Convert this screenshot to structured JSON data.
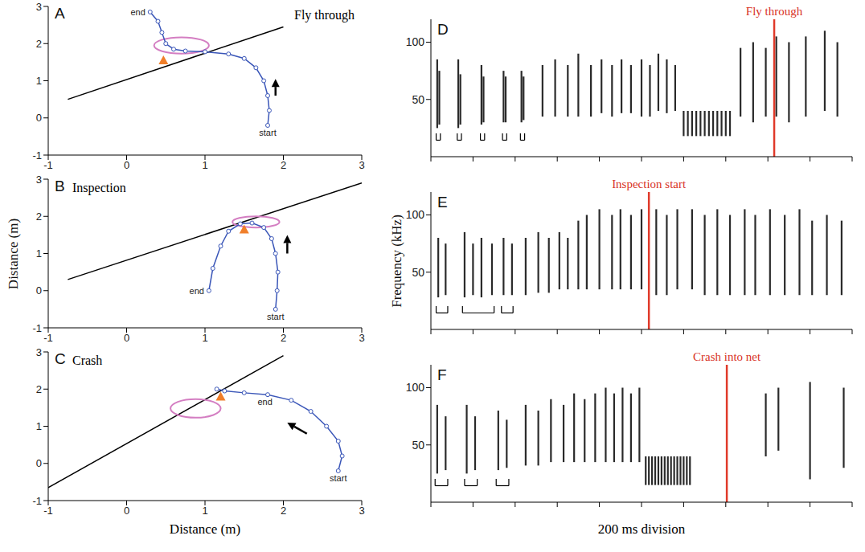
{
  "chart_data": [
    {
      "type": "line",
      "panel": "A",
      "title": "Fly through",
      "xlim": [
        -1,
        3
      ],
      "ylim": [
        -1,
        3
      ],
      "xticks": [
        -1,
        0,
        1,
        2,
        3
      ],
      "yticks": [
        -1,
        0,
        1,
        2,
        3
      ],
      "trajectory": {
        "x": [
          1.8,
          1.82,
          1.8,
          1.75,
          1.65,
          1.5,
          1.3,
          1.0,
          0.75,
          0.6,
          0.5,
          0.45,
          0.4,
          0.3
        ],
        "y": [
          -0.2,
          0.2,
          0.6,
          1.0,
          1.35,
          1.6,
          1.72,
          1.78,
          1.8,
          1.85,
          2.0,
          2.3,
          2.6,
          2.85
        ]
      },
      "point_labels": [
        "start",
        "end"
      ],
      "net_line": {
        "x": [
          -0.75,
          2.0
        ],
        "y": [
          0.5,
          2.45
        ]
      },
      "microphone": {
        "x": 0.47,
        "y": 1.55
      },
      "ellipse": {
        "x": 0.7,
        "y": 1.95,
        "rx": 0.35,
        "ry": 0.22
      },
      "arrow": {
        "x": [
          1.9,
          1.9
        ],
        "y": [
          0.6,
          1.05
        ]
      }
    },
    {
      "type": "line",
      "panel": "B",
      "title": "Inspection",
      "y_label": "Distance (m)",
      "xlim": [
        -1,
        3
      ],
      "ylim": [
        -1,
        3
      ],
      "xticks": [
        -1,
        0,
        1,
        2,
        3
      ],
      "yticks": [
        -1,
        0,
        1,
        2,
        3
      ],
      "trajectory": {
        "x": [
          1.9,
          1.92,
          1.93,
          1.9,
          1.85,
          1.75,
          1.6,
          1.45,
          1.3,
          1.2,
          1.1,
          1.05
        ],
        "y": [
          -0.5,
          0.0,
          0.5,
          1.0,
          1.4,
          1.7,
          1.82,
          1.8,
          1.6,
          1.2,
          0.6,
          0.0
        ]
      },
      "point_labels": [
        "start",
        "end"
      ],
      "net_line": {
        "x": [
          -0.75,
          3.0
        ],
        "y": [
          0.3,
          2.9
        ]
      },
      "microphone": {
        "x": 1.5,
        "y": 1.65
      },
      "ellipse": {
        "x": 1.65,
        "y": 1.85,
        "rx": 0.3,
        "ry": 0.15
      },
      "arrow": {
        "x": [
          2.05,
          2.05
        ],
        "y": [
          1.0,
          1.5
        ]
      }
    },
    {
      "type": "line",
      "panel": "C",
      "title": "Crash",
      "x_label": "Distance (m)",
      "xlim": [
        -1,
        3
      ],
      "ylim": [
        -1,
        3
      ],
      "xticks": [
        -1,
        0,
        1,
        2,
        3
      ],
      "yticks": [
        -1,
        0,
        1,
        2,
        3
      ],
      "trajectory": {
        "x": [
          2.7,
          2.75,
          2.7,
          2.55,
          2.35,
          2.1,
          1.8,
          1.5,
          1.25,
          1.15
        ],
        "y": [
          -0.2,
          0.2,
          0.6,
          1.0,
          1.4,
          1.7,
          1.85,
          1.9,
          1.95,
          2.0
        ]
      },
      "point_labels": [
        "start",
        "end"
      ],
      "net_line": {
        "x": [
          -1.0,
          2.0
        ],
        "y": [
          -0.65,
          2.9
        ]
      },
      "microphone": {
        "x": 1.2,
        "y": 1.8
      },
      "ellipse": {
        "x": 0.88,
        "y": 1.48,
        "rx": 0.32,
        "ry": 0.25
      },
      "arrow": {
        "x": [
          2.3,
          2.05
        ],
        "y": [
          0.8,
          1.1
        ]
      }
    },
    {
      "type": "spectrogram",
      "panel": "D",
      "xlim": [
        0,
        2000
      ],
      "xticks": [
        0,
        200,
        400,
        600,
        800,
        1000,
        1200,
        1400,
        1600,
        1800,
        2000
      ],
      "ylim": [
        0,
        120
      ],
      "yticks": [
        50,
        100
      ],
      "tick_labels": "y",
      "event": {
        "t": 1630,
        "label": "Fly through"
      },
      "groups": [
        [
          25,
          45
        ],
        [
          125,
          145
        ],
        [
          235,
          255
        ],
        [
          340,
          360
        ],
        [
          425,
          445
        ]
      ],
      "calls": [
        [
          30,
          25,
          85
        ],
        [
          40,
          28,
          75
        ],
        [
          130,
          25,
          85
        ],
        [
          140,
          28,
          72
        ],
        [
          240,
          28,
          80
        ],
        [
          250,
          30,
          70
        ],
        [
          345,
          30,
          75
        ],
        [
          355,
          30,
          70
        ],
        [
          430,
          30,
          75
        ],
        [
          440,
          32,
          70
        ],
        [
          530,
          35,
          80
        ],
        [
          590,
          35,
          85
        ],
        [
          650,
          35,
          80
        ],
        [
          700,
          35,
          90
        ],
        [
          760,
          35,
          80
        ],
        [
          810,
          38,
          85
        ],
        [
          860,
          35,
          80
        ],
        [
          905,
          38,
          85
        ],
        [
          950,
          38,
          80
        ],
        [
          1000,
          35,
          85
        ],
        [
          1040,
          35,
          80
        ],
        [
          1080,
          40,
          90
        ],
        [
          1120,
          38,
          85
        ],
        [
          1160,
          40,
          80
        ],
        [
          1200,
          18,
          40
        ],
        [
          1220,
          18,
          40
        ],
        [
          1240,
          18,
          40
        ],
        [
          1260,
          18,
          40
        ],
        [
          1280,
          18,
          40
        ],
        [
          1300,
          18,
          40
        ],
        [
          1320,
          18,
          40
        ],
        [
          1340,
          18,
          40
        ],
        [
          1360,
          18,
          40
        ],
        [
          1380,
          18,
          40
        ],
        [
          1400,
          18,
          40
        ],
        [
          1420,
          18,
          40
        ],
        [
          1470,
          35,
          95
        ],
        [
          1530,
          30,
          100
        ],
        [
          1590,
          35,
          95
        ],
        [
          1640,
          35,
          105
        ],
        [
          1700,
          30,
          100
        ],
        [
          1780,
          35,
          105
        ],
        [
          1870,
          40,
          110
        ],
        [
          1930,
          35,
          100
        ]
      ]
    },
    {
      "type": "spectrogram",
      "panel": "E",
      "y_label": "Frequency (kHz)",
      "xlim": [
        0,
        2000
      ],
      "xticks": [
        0,
        200,
        400,
        600,
        800,
        1000,
        1200,
        1400,
        1600,
        1800,
        2000
      ],
      "ylim": [
        0,
        120
      ],
      "yticks": [
        50,
        100
      ],
      "tick_labels": "y",
      "event": {
        "t": 1035,
        "label": "Inspection start"
      },
      "groups": [
        [
          25,
          80
        ],
        [
          150,
          300
        ],
        [
          335,
          390
        ]
      ],
      "calls": [
        [
          35,
          28,
          80
        ],
        [
          70,
          30,
          75
        ],
        [
          160,
          28,
          85
        ],
        [
          200,
          30,
          75
        ],
        [
          240,
          28,
          80
        ],
        [
          290,
          30,
          75
        ],
        [
          345,
          30,
          80
        ],
        [
          385,
          30,
          75
        ],
        [
          450,
          30,
          80
        ],
        [
          510,
          32,
          85
        ],
        [
          560,
          32,
          80
        ],
        [
          610,
          35,
          85
        ],
        [
          650,
          35,
          80
        ],
        [
          700,
          35,
          95
        ],
        [
          740,
          35,
          100
        ],
        [
          800,
          35,
          105
        ],
        [
          860,
          35,
          100
        ],
        [
          900,
          35,
          105
        ],
        [
          950,
          35,
          100
        ],
        [
          1000,
          35,
          105
        ],
        [
          1070,
          30,
          105
        ],
        [
          1120,
          30,
          100
        ],
        [
          1170,
          35,
          105
        ],
        [
          1240,
          35,
          105
        ],
        [
          1300,
          30,
          100
        ],
        [
          1360,
          30,
          105
        ],
        [
          1420,
          30,
          100
        ],
        [
          1490,
          30,
          105
        ],
        [
          1540,
          30,
          100
        ],
        [
          1610,
          30,
          105
        ],
        [
          1680,
          30,
          100
        ],
        [
          1750,
          30,
          105
        ],
        [
          1810,
          30,
          95
        ],
        [
          1880,
          30,
          100
        ],
        [
          1950,
          30,
          95
        ]
      ]
    },
    {
      "type": "spectrogram",
      "panel": "F",
      "x_label": "200 ms division",
      "xlim": [
        0,
        2000
      ],
      "xticks": [
        0,
        200,
        400,
        600,
        800,
        1000,
        1200,
        1400,
        1600,
        1800,
        2000
      ],
      "ylim": [
        0,
        120
      ],
      "yticks": [
        50,
        100
      ],
      "tick_labels": "y",
      "event": {
        "t": 1405,
        "label": "Crash into net"
      },
      "groups": [
        [
          20,
          80
        ],
        [
          160,
          220
        ],
        [
          310,
          370
        ]
      ],
      "calls": [
        [
          30,
          25,
          85
        ],
        [
          70,
          28,
          75
        ],
        [
          170,
          25,
          85
        ],
        [
          210,
          28,
          75
        ],
        [
          320,
          28,
          80
        ],
        [
          360,
          30,
          72
        ],
        [
          450,
          32,
          85
        ],
        [
          510,
          32,
          80
        ],
        [
          570,
          35,
          90
        ],
        [
          630,
          35,
          85
        ],
        [
          680,
          35,
          95
        ],
        [
          730,
          35,
          90
        ],
        [
          780,
          35,
          95
        ],
        [
          830,
          35,
          100
        ],
        [
          870,
          35,
          95
        ],
        [
          910,
          35,
          100
        ],
        [
          950,
          35,
          95
        ],
        [
          990,
          35,
          100
        ],
        [
          1020,
          15,
          40
        ],
        [
          1035,
          15,
          40
        ],
        [
          1050,
          15,
          40
        ],
        [
          1065,
          15,
          40
        ],
        [
          1080,
          15,
          40
        ],
        [
          1095,
          15,
          40
        ],
        [
          1110,
          15,
          40
        ],
        [
          1125,
          15,
          40
        ],
        [
          1140,
          15,
          40
        ],
        [
          1155,
          15,
          40
        ],
        [
          1170,
          15,
          40
        ],
        [
          1185,
          15,
          40
        ],
        [
          1200,
          15,
          40
        ],
        [
          1215,
          15,
          40
        ],
        [
          1230,
          15,
          40
        ],
        [
          1590,
          40,
          95
        ],
        [
          1650,
          45,
          100
        ],
        [
          1800,
          20,
          105
        ],
        [
          1960,
          30,
          100
        ]
      ]
    }
  ]
}
